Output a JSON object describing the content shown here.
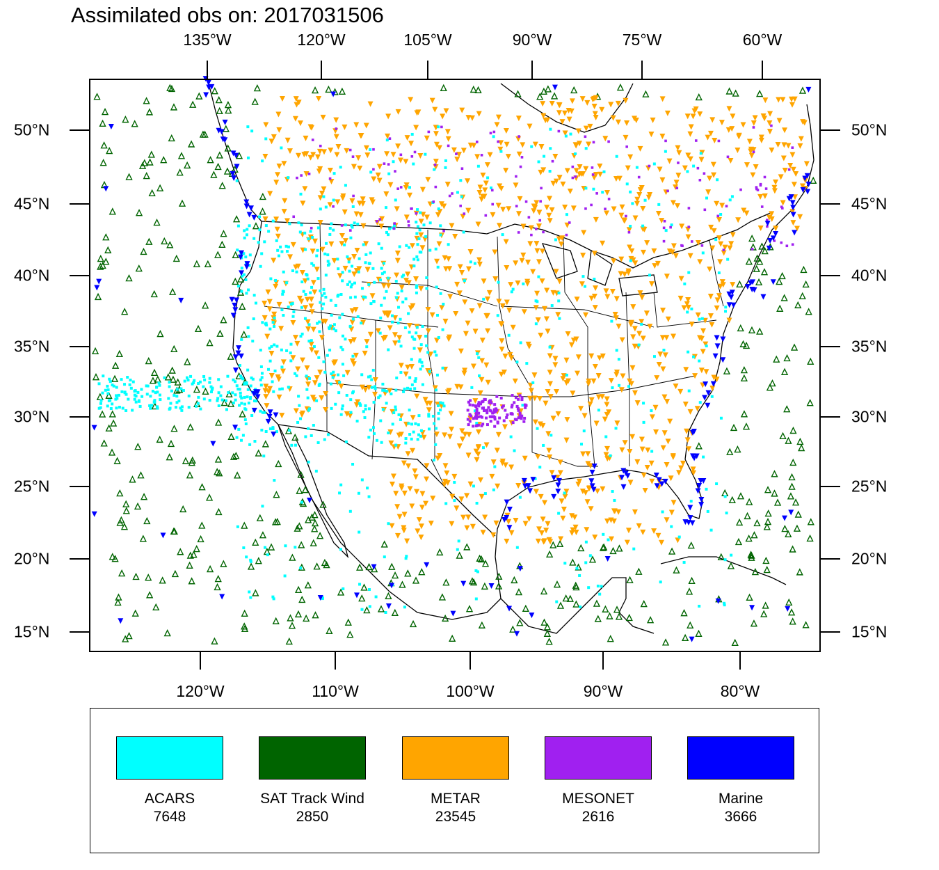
{
  "title": "Assimilated obs on: 2017031506",
  "top_lon_labels": [
    "135°W",
    "120°W",
    "105°W",
    "90°W",
    "75°W",
    "60°W"
  ],
  "bottom_lon_labels": [
    "120°W",
    "110°W",
    "100°W",
    "90°W",
    "80°W"
  ],
  "lat_labels": [
    "50°N",
    "45°N",
    "40°N",
    "35°N",
    "30°N",
    "25°N",
    "20°N",
    "15°N"
  ],
  "legend": [
    {
      "name": "ACARS",
      "count": "7648",
      "color": "#00ffff"
    },
    {
      "name": "SAT Track Wind",
      "count": "2850",
      "color": "#006400"
    },
    {
      "name": "METAR",
      "count": "23545",
      "color": "#ffa500"
    },
    {
      "name": "MESONET",
      "count": "2616",
      "color": "#a020f0"
    },
    {
      "name": "Marine",
      "count": "3666",
      "color": "#0000ff"
    }
  ],
  "colors": {
    "frame": "#000000",
    "coast": "#000000"
  }
}
